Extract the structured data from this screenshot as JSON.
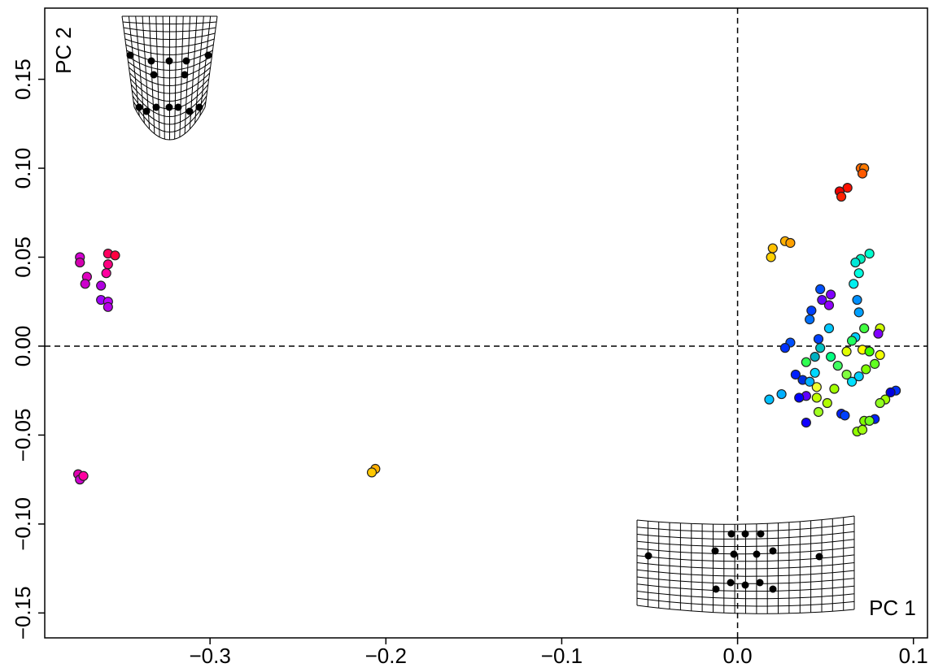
{
  "chart_data": {
    "type": "scatter",
    "x_label": "PC  1",
    "y_label": "PC  2",
    "xlim": [
      -0.394,
      0.108
    ],
    "ylim": [
      -0.164,
      0.19
    ],
    "xticks": [
      {
        "value": -0.3,
        "label": "−0.3"
      },
      {
        "value": -0.2,
        "label": "−0.2"
      },
      {
        "value": -0.1,
        "label": "−0.1"
      },
      {
        "value": 0,
        "label": "0.0"
      },
      0.1
    ],
    "yticks": [
      {
        "value": -0.15,
        "label": "−0.15"
      },
      {
        "value": -0.1,
        "label": "−0.10"
      },
      {
        "value": -0.05,
        "label": "−0.05"
      },
      {
        "value": 0,
        "label": "0.00"
      },
      0.05,
      {
        "value": 0.1,
        "label": "0.10"
      },
      0.15
    ],
    "zero_lines": true,
    "x": [
      -0.374,
      -0.374,
      -0.37,
      -0.371,
      -0.358,
      -0.354,
      -0.358,
      -0.359,
      -0.362,
      -0.362,
      -0.358,
      -0.358,
      -0.375,
      -0.374,
      -0.372,
      -0.206,
      -0.208,
      0.07,
      0.072,
      0.071,
      0.0625,
      0.058,
      0.059,
      0.02,
      0.019,
      0.027,
      0.03,
      0.075,
      0.07,
      0.067,
      0.069,
      0.066,
      0.068,
      0.069,
      0.053,
      0.048,
      0.047,
      0.052,
      0.042,
      0.041,
      0.072,
      0.081,
      0.08,
      0.067,
      0.065,
      0.052,
      0.03,
      0.027,
      0.046,
      0.047,
      0.071,
      0.062,
      0.075,
      0.081,
      0.078,
      0.073,
      0.069,
      0.065,
      0.053,
      0.057,
      0.044,
      0.039,
      0.033,
      0.037,
      0.041,
      0.045,
      0.055,
      0.039,
      0.035,
      0.045,
      0.051,
      0.018,
      0.025,
      0.059,
      0.061,
      0.046,
      0.039,
      0.09,
      0.087,
      0.084,
      0.081,
      0.078,
      0.072,
      0.075,
      0.068,
      0.071,
      0.044,
      0.062
    ],
    "y": [
      0.05,
      0.047,
      0.039,
      0.035,
      0.052,
      0.051,
      0.046,
      0.041,
      0.034,
      0.026,
      0.025,
      0.022,
      -0.072,
      -0.075,
      -0.073,
      -0.069,
      -0.071,
      0.1,
      0.1,
      0.097,
      0.089,
      0.087,
      0.084,
      0.055,
      0.05,
      0.059,
      0.058,
      0.052,
      0.049,
      0.047,
      0.041,
      0.035,
      0.026,
      0.019,
      0.029,
      0.026,
      0.032,
      0.023,
      0.02,
      0.015,
      0.01,
      0.01,
      0.007,
      0.005,
      0.003,
      0.01,
      0.002,
      -0.001,
      0.004,
      -0.001,
      -0.002,
      -0.003,
      -0.003,
      -0.005,
      -0.01,
      -0.013,
      -0.017,
      -0.02,
      -0.006,
      -0.011,
      -0.006,
      -0.009,
      -0.016,
      -0.019,
      -0.02,
      -0.023,
      -0.024,
      -0.028,
      -0.029,
      -0.029,
      -0.032,
      -0.03,
      -0.027,
      -0.038,
      -0.039,
      -0.037,
      -0.043,
      -0.025,
      -0.026,
      -0.03,
      -0.032,
      -0.041,
      -0.042,
      -0.042,
      -0.048,
      -0.047,
      -0.015,
      -0.016
    ],
    "colors": [
      "#d400d4",
      "#d400b0",
      "#e000c0",
      "#cc00cc",
      "#ff0060",
      "#ff0040",
      "#ff0080",
      "#ff00a0",
      "#b000e0",
      "#a000ff",
      "#c000ff",
      "#b800e8",
      "#e000b0",
      "#d000d0",
      "#ff00a0",
      "#ffb000",
      "#ffc800",
      "#ff6a00",
      "#ff7a00",
      "#ff5a00",
      "#ff1000",
      "#ee0000",
      "#ff2000",
      "#ffc000",
      "#ffd000",
      "#ffb000",
      "#ffa000",
      "#00ffd0",
      "#00f0c0",
      "#00e8d8",
      "#00ffe0",
      "#00f0f0",
      "#0090ff",
      "#00a0ff",
      "#8000ff",
      "#6a00ff",
      "#0050ff",
      "#9000ff",
      "#0040ff",
      "#0070ff",
      "#40ff40",
      "#d0ff00",
      "#8000ff",
      "#00d0ff",
      "#20ff60",
      "#00c8ff",
      "#0050ff",
      "#0030ff",
      "#0040ff",
      "#00c0c0",
      "#ffff00",
      "#e0ff00",
      "#40ff00",
      "#f0ff00",
      "#60ff20",
      "#80ff00",
      "#00d0ff",
      "#00e0ff",
      "#00ff80",
      "#40ff60",
      "#00b0c0",
      "#30ff50",
      "#0020ff",
      "#0030e0",
      "#00b0ff",
      "#f0ff30",
      "#a0ff00",
      "#6000ff",
      "#0000ff",
      "#c0ff00",
      "#b0ff00",
      "#00c0ff",
      "#00b0ff",
      "#0020ff",
      "#0040ff",
      "#a0ff20",
      "#1000ff",
      "#0030ff",
      "#0000e0",
      "#a0ff00",
      "#90ff20",
      "#0020ff",
      "#80ff00",
      "#70ff20",
      "#90ff00",
      "#a0ff10",
      "#00d8ff",
      "#80ff40"
    ]
  }
}
